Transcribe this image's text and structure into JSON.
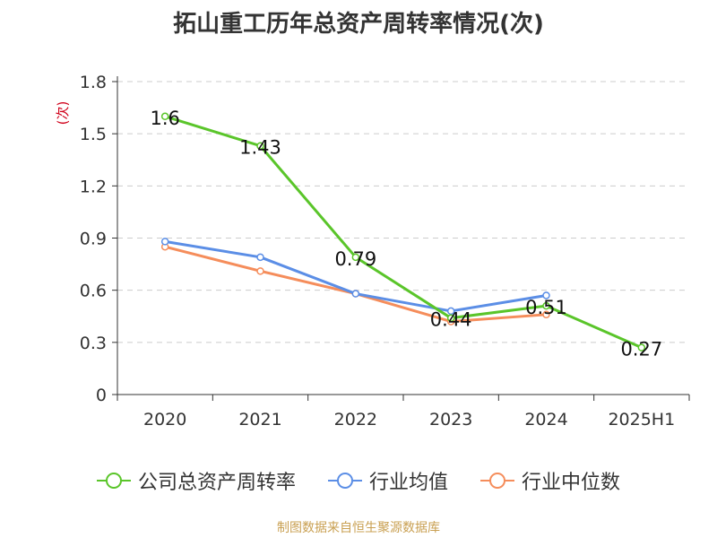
{
  "title": "拓山重工历年总资产周转率情况(次)",
  "source_note": "制图数据来自恒生聚源数据库",
  "chart_data": {
    "type": "line",
    "title": "拓山重工历年总资产周转率情况(次)",
    "ylabel": "(次)",
    "xlabel": "",
    "ylim": [
      0,
      1.8
    ],
    "yticks": [
      "0",
      "0.3",
      "0.6",
      "0.9",
      "1.2",
      "1.5",
      "1.8"
    ],
    "categories": [
      "2020",
      "2021",
      "2022",
      "2023",
      "2024",
      "2025H1"
    ],
    "grid": true,
    "legend_position": "bottom",
    "series": [
      {
        "name": "公司总资产周转率",
        "color": "#5ac52a",
        "values": [
          1.6,
          1.43,
          0.79,
          0.44,
          0.51,
          0.27
        ],
        "labels": [
          "1.6",
          "1.43",
          "0.79",
          "0.44",
          "0.51",
          "0.27"
        ]
      },
      {
        "name": "行业均值",
        "color": "#5b8ee6",
        "values": [
          0.88,
          0.79,
          0.58,
          0.48,
          0.57,
          null
        ]
      },
      {
        "name": "行业中位数",
        "color": "#f58d5b",
        "values": [
          0.85,
          0.71,
          0.58,
          0.42,
          0.46,
          null
        ]
      }
    ]
  }
}
